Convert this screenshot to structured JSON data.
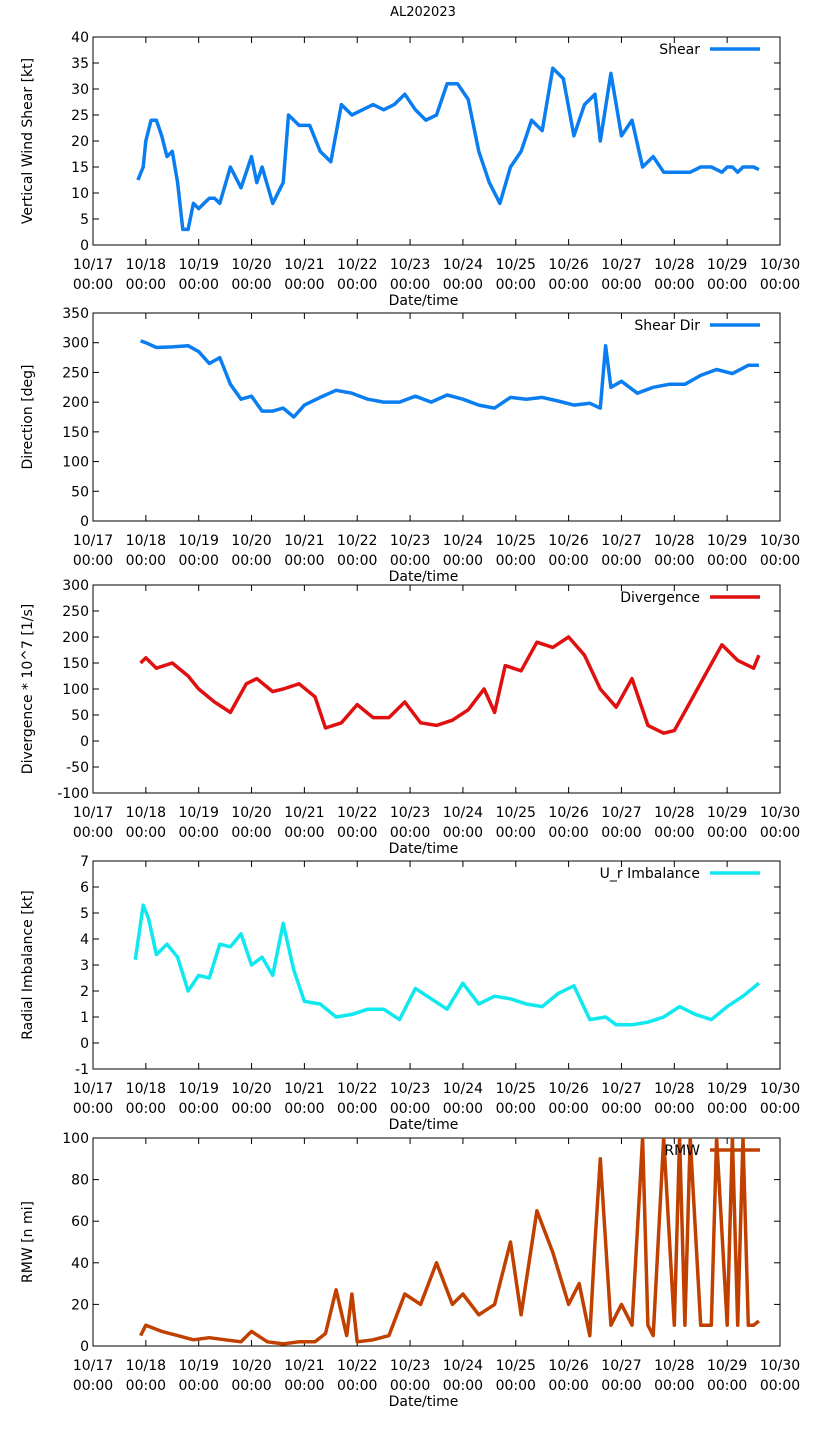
{
  "figure": {
    "title": "AL202023"
  },
  "chart_data": [
    {
      "type": "line",
      "ylabel": "Vertical Wind Shear [kt]",
      "xlabel": "Date/time",
      "ylim": [
        0,
        40
      ],
      "yticks": [
        0,
        5,
        10,
        15,
        20,
        25,
        30,
        35,
        40
      ],
      "xlim": [
        0,
        13
      ],
      "xtick_labels": [
        "10/17\n00:00",
        "10/18\n00:00",
        "10/19\n00:00",
        "10/20\n00:00",
        "10/21\n00:00",
        "10/22\n00:00",
        "10/23\n00:00",
        "10/24\n00:00",
        "10/25\n00:00",
        "10/26\n00:00",
        "10/27\n00:00",
        "10/28\n00:00",
        "10/29\n00:00",
        "10/30\n00:00"
      ],
      "legend": "top-right",
      "series": [
        {
          "name": "Shear",
          "color": "#0a7ef0",
          "x": [
            0.85,
            0.95,
            1.0,
            1.1,
            1.2,
            1.3,
            1.4,
            1.5,
            1.6,
            1.7,
            1.8,
            1.9,
            2.0,
            2.1,
            2.2,
            2.3,
            2.4,
            2.6,
            2.8,
            3.0,
            3.1,
            3.2,
            3.4,
            3.6,
            3.7,
            3.9,
            4.1,
            4.3,
            4.5,
            4.7,
            4.9,
            5.1,
            5.3,
            5.5,
            5.7,
            5.9,
            6.1,
            6.3,
            6.5,
            6.7,
            6.9,
            7.1,
            7.3,
            7.5,
            7.7,
            7.9,
            8.1,
            8.3,
            8.5,
            8.7,
            8.9,
            9.1,
            9.3,
            9.5,
            9.6,
            9.8,
            10.0,
            10.2,
            10.4,
            10.6,
            10.8,
            11.0,
            11.1,
            11.3,
            11.5,
            11.7,
            11.9,
            12.0,
            12.1,
            12.2,
            12.3,
            12.5,
            12.6
          ],
          "y": [
            12.5,
            15,
            20,
            24,
            24,
            21,
            17,
            18,
            12,
            3,
            3,
            8,
            7,
            8,
            9,
            9,
            8,
            15,
            11,
            17,
            12,
            15,
            8,
            12,
            25,
            23,
            23,
            18,
            16,
            27,
            25,
            26,
            27,
            26,
            27,
            29,
            26,
            24,
            25,
            31,
            31,
            28,
            18,
            12,
            8,
            15,
            18,
            24,
            22,
            34,
            32,
            21,
            27,
            29,
            20,
            33,
            21,
            24,
            15,
            17,
            14,
            14,
            14,
            14,
            15,
            15,
            14,
            15,
            15,
            14,
            15,
            15,
            14.5
          ]
        }
      ]
    },
    {
      "type": "line",
      "ylabel": "Direction [deg]",
      "xlabel": "Date/time",
      "ylim": [
        0,
        350
      ],
      "yticks": [
        0,
        50,
        100,
        150,
        200,
        250,
        300,
        350
      ],
      "xlim": [
        0,
        13
      ],
      "xtick_labels": [
        "10/17\n00:00",
        "10/18\n00:00",
        "10/19\n00:00",
        "10/20\n00:00",
        "10/21\n00:00",
        "10/22\n00:00",
        "10/23\n00:00",
        "10/24\n00:00",
        "10/25\n00:00",
        "10/26\n00:00",
        "10/27\n00:00",
        "10/28\n00:00",
        "10/29\n00:00",
        "10/30\n00:00"
      ],
      "legend": "top-right",
      "series": [
        {
          "name": "Shear Dir",
          "color": "#0a7ef0",
          "x": [
            0.9,
            1.0,
            1.2,
            1.5,
            1.8,
            2.0,
            2.2,
            2.4,
            2.6,
            2.8,
            3.0,
            3.2,
            3.4,
            3.6,
            3.8,
            4.0,
            4.3,
            4.6,
            4.9,
            5.2,
            5.5,
            5.8,
            6.1,
            6.4,
            6.7,
            7.0,
            7.3,
            7.6,
            7.9,
            8.2,
            8.5,
            8.8,
            9.1,
            9.4,
            9.6,
            9.7,
            9.8,
            10.0,
            10.3,
            10.6,
            10.9,
            11.2,
            11.5,
            11.8,
            12.1,
            12.4,
            12.6
          ],
          "y": [
            303,
            300,
            292,
            293,
            295,
            285,
            265,
            275,
            230,
            205,
            210,
            185,
            185,
            190,
            175,
            195,
            208,
            220,
            215,
            205,
            200,
            200,
            210,
            200,
            212,
            205,
            195,
            190,
            208,
            205,
            208,
            202,
            195,
            198,
            190,
            295,
            225,
            235,
            215,
            225,
            230,
            230,
            245,
            255,
            248,
            262,
            262
          ]
        }
      ]
    },
    {
      "type": "line",
      "ylabel": "Divergence * 10^7 [1/s]",
      "xlabel": "Date/time",
      "ylim": [
        -100,
        300
      ],
      "yticks": [
        -100,
        -50,
        0,
        50,
        100,
        150,
        200,
        250,
        300
      ],
      "xlim": [
        0,
        13
      ],
      "xtick_labels": [
        "10/17\n00:00",
        "10/18\n00:00",
        "10/19\n00:00",
        "10/20\n00:00",
        "10/21\n00:00",
        "10/22\n00:00",
        "10/23\n00:00",
        "10/24\n00:00",
        "10/25\n00:00",
        "10/26\n00:00",
        "10/27\n00:00",
        "10/28\n00:00",
        "10/29\n00:00",
        "10/30\n00:00"
      ],
      "legend": "top-right",
      "series": [
        {
          "name": "Divergence",
          "color": "#e01010",
          "x": [
            0.9,
            1.0,
            1.2,
            1.5,
            1.8,
            2.0,
            2.3,
            2.6,
            2.9,
            3.1,
            3.4,
            3.6,
            3.9,
            4.2,
            4.4,
            4.7,
            5.0,
            5.3,
            5.6,
            5.9,
            6.2,
            6.5,
            6.8,
            7.1,
            7.4,
            7.6,
            7.8,
            8.1,
            8.4,
            8.7,
            9.0,
            9.3,
            9.6,
            9.9,
            10.2,
            10.5,
            10.8,
            11.0,
            11.3,
            11.6,
            11.9,
            12.2,
            12.5,
            12.6
          ],
          "y": [
            150,
            160,
            140,
            150,
            125,
            100,
            75,
            55,
            110,
            120,
            95,
            100,
            110,
            85,
            25,
            35,
            70,
            45,
            45,
            75,
            35,
            30,
            40,
            60,
            100,
            55,
            145,
            135,
            190,
            180,
            200,
            165,
            100,
            65,
            120,
            30,
            15,
            20,
            75,
            130,
            185,
            155,
            140,
            165
          ]
        }
      ]
    },
    {
      "type": "line",
      "ylabel": "Radial Imbalance [kt]",
      "xlabel": "Date/time",
      "ylim": [
        -1,
        7
      ],
      "yticks": [
        -1,
        0,
        1,
        2,
        3,
        4,
        5,
        6,
        7
      ],
      "xlim": [
        0,
        13
      ],
      "xtick_labels": [
        "10/17\n00:00",
        "10/18\n00:00",
        "10/19\n00:00",
        "10/20\n00:00",
        "10/21\n00:00",
        "10/22\n00:00",
        "10/23\n00:00",
        "10/24\n00:00",
        "10/25\n00:00",
        "10/26\n00:00",
        "10/27\n00:00",
        "10/28\n00:00",
        "10/29\n00:00",
        "10/30\n00:00"
      ],
      "legend": "top-right",
      "series": [
        {
          "name": "U_r Imbalance",
          "color": "#10e8f0",
          "x": [
            0.8,
            0.95,
            1.05,
            1.2,
            1.4,
            1.6,
            1.8,
            2.0,
            2.2,
            2.4,
            2.6,
            2.8,
            3.0,
            3.2,
            3.4,
            3.6,
            3.8,
            4.0,
            4.3,
            4.6,
            4.9,
            5.2,
            5.5,
            5.8,
            6.1,
            6.4,
            6.7,
            7.0,
            7.3,
            7.6,
            7.9,
            8.2,
            8.5,
            8.8,
            9.1,
            9.4,
            9.7,
            9.9,
            10.2,
            10.5,
            10.8,
            11.1,
            11.4,
            11.7,
            12.0,
            12.3,
            12.6
          ],
          "y": [
            3.2,
            5.3,
            4.8,
            3.4,
            3.8,
            3.3,
            2.0,
            2.6,
            2.5,
            3.8,
            3.7,
            4.2,
            3.0,
            3.3,
            2.6,
            4.6,
            2.8,
            1.6,
            1.5,
            1.0,
            1.1,
            1.3,
            1.3,
            0.9,
            2.1,
            1.7,
            1.3,
            2.3,
            1.5,
            1.8,
            1.7,
            1.5,
            1.4,
            1.9,
            2.2,
            0.9,
            1.0,
            0.7,
            0.7,
            0.8,
            1.0,
            1.4,
            1.1,
            0.9,
            1.4,
            1.8,
            2.3
          ]
        }
      ]
    },
    {
      "type": "line",
      "ylabel": "RMW [n mi]",
      "xlabel": "Date/time",
      "ylim": [
        0,
        100
      ],
      "yticks": [
        0,
        20,
        40,
        60,
        80,
        100
      ],
      "xlim": [
        0,
        13
      ],
      "xtick_labels": [
        "10/17\n00:00",
        "10/18\n00:00",
        "10/19\n00:00",
        "10/20\n00:00",
        "10/21\n00:00",
        "10/22\n00:00",
        "10/23\n00:00",
        "10/24\n00:00",
        "10/25\n00:00",
        "10/26\n00:00",
        "10/27\n00:00",
        "10/28\n00:00",
        "10/29\n00:00",
        "10/30\n00:00"
      ],
      "legend": "top-right",
      "series": [
        {
          "name": "RMW",
          "color": "#c04000",
          "x": [
            0.9,
            1.0,
            1.3,
            1.6,
            1.9,
            2.2,
            2.5,
            2.8,
            3.0,
            3.3,
            3.6,
            3.9,
            4.2,
            4.4,
            4.6,
            4.8,
            4.9,
            5.0,
            5.3,
            5.6,
            5.9,
            6.2,
            6.5,
            6.8,
            7.0,
            7.3,
            7.6,
            7.9,
            8.1,
            8.4,
            8.7,
            9.0,
            9.2,
            9.4,
            9.5,
            9.6,
            9.8,
            10.0,
            10.2,
            10.4,
            10.5,
            10.6,
            10.8,
            11.0,
            11.1,
            11.2,
            11.3,
            11.5,
            11.7,
            11.8,
            12.0,
            12.1,
            12.2,
            12.3,
            12.4,
            12.5,
            12.6
          ],
          "y": [
            5,
            10,
            7,
            5,
            3,
            4,
            3,
            2,
            7,
            2,
            1,
            2,
            2,
            6,
            27,
            5,
            25,
            2,
            3,
            5,
            25,
            20,
            40,
            20,
            25,
            15,
            20,
            50,
            15,
            65,
            45,
            20,
            30,
            5,
            50,
            90,
            10,
            20,
            10,
            100,
            10,
            5,
            100,
            10,
            100,
            10,
            100,
            10,
            10,
            100,
            10,
            100,
            10,
            100,
            10,
            10,
            12
          ]
        }
      ]
    }
  ]
}
